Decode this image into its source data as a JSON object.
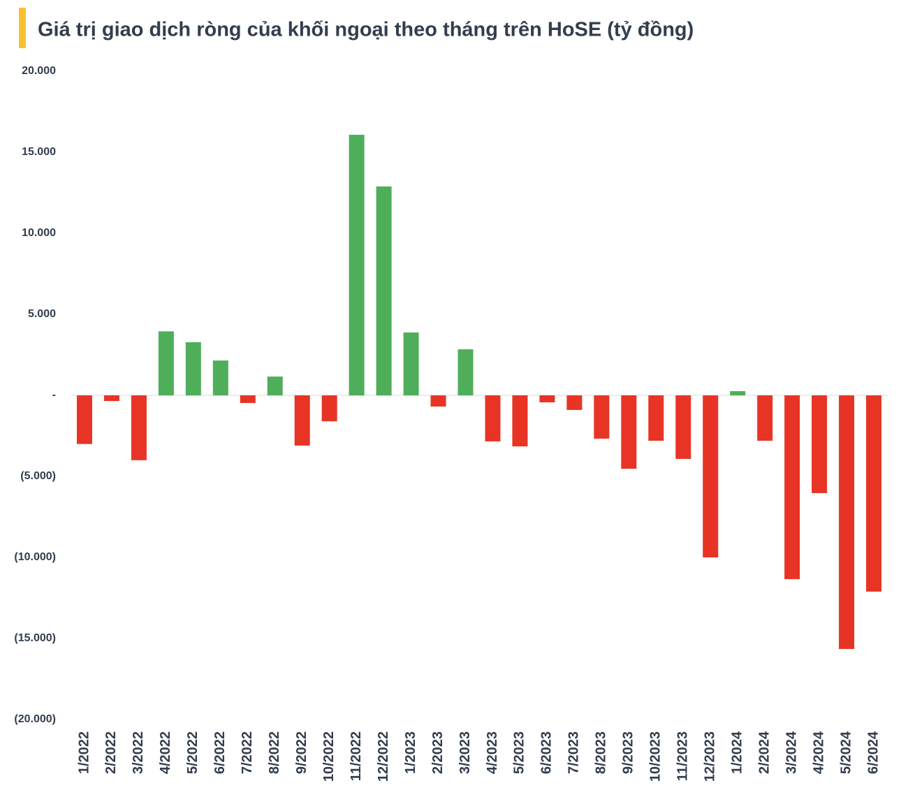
{
  "chart_data": {
    "type": "bar",
    "title": "Giá trị giao dịch ròng của khối ngoại theo tháng trên HoSE (tỷ đồng)",
    "categories": [
      "1/2022",
      "2/2022",
      "3/2022",
      "4/2022",
      "5/2022",
      "6/2022",
      "7/2022",
      "8/2022",
      "9/2022",
      "10/2022",
      "11/2022",
      "12/2022",
      "1/2023",
      "2/2023",
      "3/2023",
      "4/2023",
      "5/2023",
      "6/2023",
      "7/2023",
      "8/2023",
      "9/2023",
      "10/2023",
      "11/2023",
      "12/2023",
      "1/2024",
      "2/2024",
      "3/2024",
      "4/2024",
      "5/2024",
      "6/2024"
    ],
    "values": [
      -3000,
      -350,
      -4000,
      3950,
      3280,
      2150,
      -470,
      1160,
      -3100,
      -1600,
      16080,
      12890,
      3880,
      -690,
      2840,
      -2840,
      -3150,
      -430,
      -900,
      -2670,
      -4530,
      -2800,
      -3920,
      -10000,
      260,
      -2800,
      -11340,
      -6030,
      -15650,
      -12110
    ],
    "positive_color": "#4fae5a",
    "negative_color": "#e83424",
    "ylim": [
      -20000,
      20000
    ],
    "yticks": [
      {
        "value": -20000,
        "label": "(20.000)"
      },
      {
        "value": -15000,
        "label": "(15.000)"
      },
      {
        "value": -10000,
        "label": "(10.000)"
      },
      {
        "value": -5000,
        "label": "(5.000)"
      },
      {
        "value": 0,
        "label": "-"
      },
      {
        "value": 5000,
        "label": "5.000"
      },
      {
        "value": 10000,
        "label": "10.000"
      },
      {
        "value": 15000,
        "label": "15.000"
      },
      {
        "value": 20000,
        "label": "20.000"
      }
    ],
    "grid": false
  }
}
